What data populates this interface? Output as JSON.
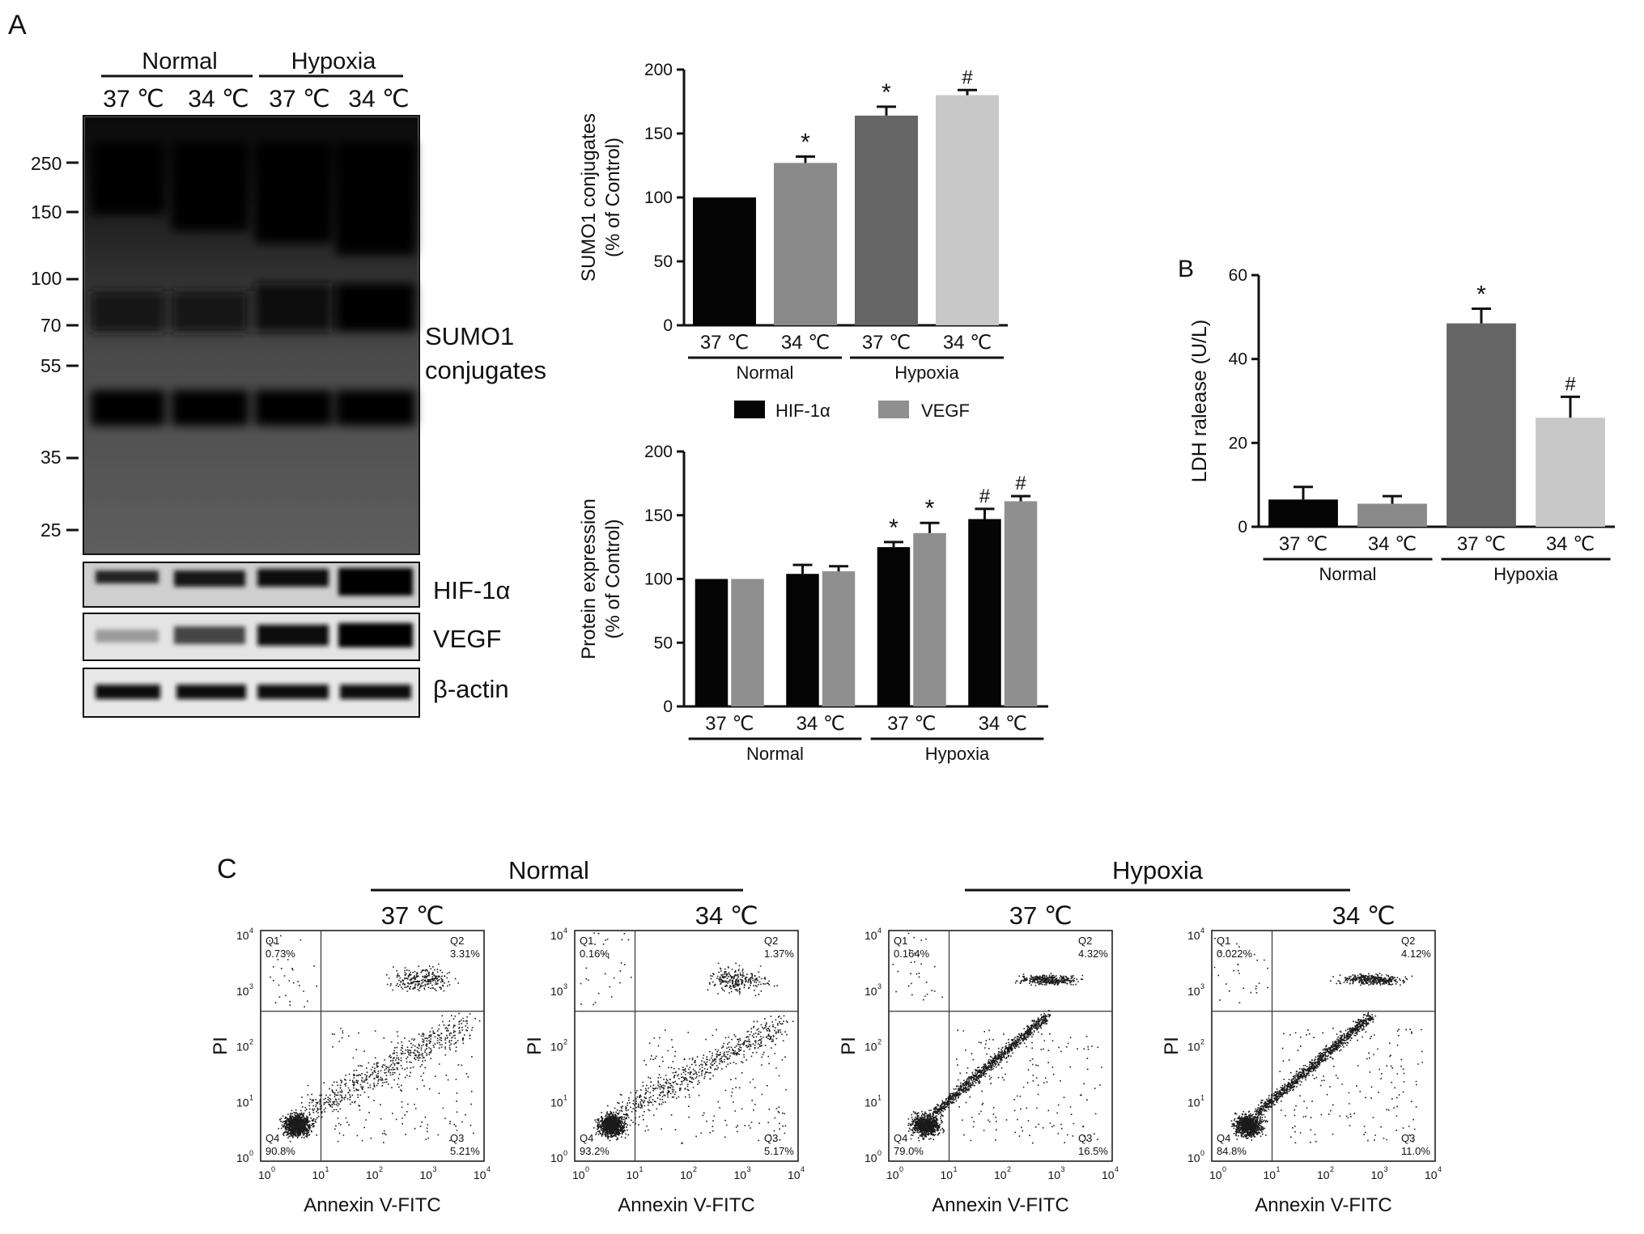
{
  "panels": {
    "a": "A",
    "b": "B",
    "c": "C"
  },
  "blot": {
    "groups": [
      "Normal",
      "Hypoxia"
    ],
    "lanes": [
      "37 ℃",
      "34 ℃",
      "37 ℃",
      "34 ℃"
    ],
    "markers": [
      "250",
      "150",
      "100",
      "70",
      "55",
      "35",
      "25"
    ],
    "sumo_label_1": "SUMO1",
    "sumo_label_2": "conjugates",
    "strip_labels": [
      "HIF-1α",
      "VEGF",
      "β-actin"
    ]
  },
  "flow": {
    "groups": [
      "Normal",
      "Hypoxia"
    ],
    "temps": [
      "37 ℃",
      "34 ℃",
      "37 ℃",
      "34 ℃"
    ],
    "xlabel": "Annexin V-FITC",
    "ylabel": "PI",
    "tick_labels": [
      "10",
      "10",
      "10",
      "10",
      "10"
    ],
    "tick_exps": [
      "0",
      "1",
      "2",
      "3",
      "4"
    ],
    "plots": [
      {
        "Q1": "0.73%",
        "Q2": "3.31%",
        "Q3": "5.21%",
        "Q4": "90.8%"
      },
      {
        "Q1": "0.16%",
        "Q2": "1.37%",
        "Q3": "5.17%",
        "Q4": "93.2%"
      },
      {
        "Q1": "0.164%",
        "Q2": "4.32%",
        "Q3": "16.5%",
        "Q4": "79.0%"
      },
      {
        "Q1": "0.022%",
        "Q2": "4.12%",
        "Q3": "11.0%",
        "Q4": "84.8%"
      }
    ],
    "quadrant_names": [
      "Q1",
      "Q2",
      "Q3",
      "Q4"
    ]
  },
  "chart_data": [
    {
      "type": "bar",
      "ylabel_1": "SUMO1 conjugates",
      "ylabel_2": "(% of Control)",
      "categories": [
        "37 ℃",
        "34 ℃",
        "37 ℃",
        "34 ℃"
      ],
      "groups": [
        "Normal",
        "Hypoxia"
      ],
      "values": [
        100,
        127,
        164,
        180
      ],
      "errors": [
        0,
        5,
        7,
        4
      ],
      "annotations": [
        "",
        "*",
        "*",
        "#"
      ],
      "colors": [
        "#050505",
        "#8a8a8a",
        "#666666",
        "#c8c8c8"
      ],
      "ylim": [
        0,
        200
      ],
      "yticks": [
        "0",
        "50",
        "100",
        "150",
        "200"
      ]
    },
    {
      "type": "bar",
      "ylabel_1": "Protein expression",
      "ylabel_2": "(% of Control)",
      "categories": [
        "37 ℃",
        "34 ℃",
        "37 ℃",
        "34 ℃"
      ],
      "groups": [
        "Normal",
        "Hypoxia"
      ],
      "series": [
        {
          "name": "HIF-1α",
          "values": [
            100,
            104,
            125,
            147
          ],
          "errors": [
            0,
            7,
            4,
            8
          ],
          "annotations": [
            "",
            "",
            "*",
            "#"
          ],
          "color": "#050505"
        },
        {
          "name": "VEGF",
          "values": [
            100,
            106,
            136,
            161
          ],
          "errors": [
            0,
            4,
            8,
            4
          ],
          "annotations": [
            "",
            "",
            "*",
            "#"
          ],
          "color": "#8f8f8f"
        }
      ],
      "ylim": [
        0,
        200
      ],
      "yticks": [
        "0",
        "50",
        "100",
        "150",
        "200"
      ]
    },
    {
      "type": "bar",
      "ylabel": "LDH ralease (U/L)",
      "categories": [
        "37 ℃",
        "34 ℃",
        "37 ℃",
        "34 ℃"
      ],
      "groups": [
        "Normal",
        "Hypoxia"
      ],
      "values": [
        6.5,
        5.5,
        48.5,
        26
      ],
      "errors": [
        3,
        1.8,
        3.5,
        5
      ],
      "annotations": [
        "",
        "",
        "*",
        "#"
      ],
      "colors": [
        "#050505",
        "#8a8a8a",
        "#666666",
        "#c8c8c8"
      ],
      "ylim": [
        0,
        60
      ],
      "yticks": [
        "0",
        "20",
        "40",
        "60"
      ]
    }
  ]
}
